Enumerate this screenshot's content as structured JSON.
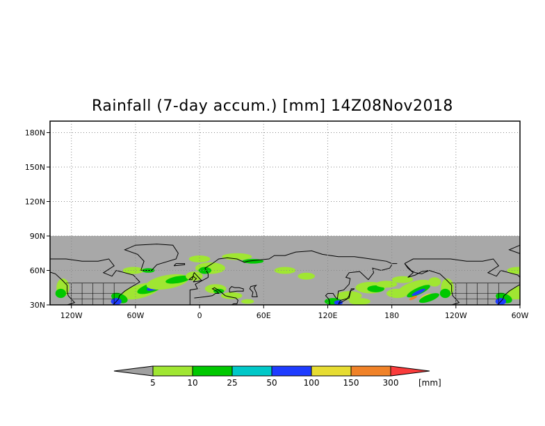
{
  "title": "Rainfall (7-day accum.) [mm] 14Z08Nov2018",
  "map": {
    "lon_range": [
      -140,
      300
    ],
    "lat_range": [
      30,
      190
    ],
    "data_lat_range": [
      30,
      90
    ],
    "y_ticks": [
      "180N",
      "150N",
      "120N",
      "90N",
      "60N",
      "30N"
    ],
    "y_tick_values": [
      180,
      150,
      120,
      90,
      60,
      30
    ],
    "x_ticks": [
      "120W",
      "60W",
      "0",
      "60E",
      "120E",
      "180",
      "120W",
      "60W"
    ],
    "x_tick_values": [
      -120,
      -60,
      0,
      60,
      120,
      180,
      240,
      300
    ],
    "grid": "dotted",
    "no_data_color": "#a8a8a8",
    "coastline_color": "#000000"
  },
  "colorbar": {
    "unit": "[mm]",
    "labels": [
      "5",
      "10",
      "25",
      "50",
      "100",
      "150",
      "300"
    ],
    "colors": [
      "#a0a0a0",
      "#a0e632",
      "#00c800",
      "#00c8c8",
      "#1e3cff",
      "#e6dc32",
      "#f08228",
      "#fa3c3c"
    ]
  }
}
